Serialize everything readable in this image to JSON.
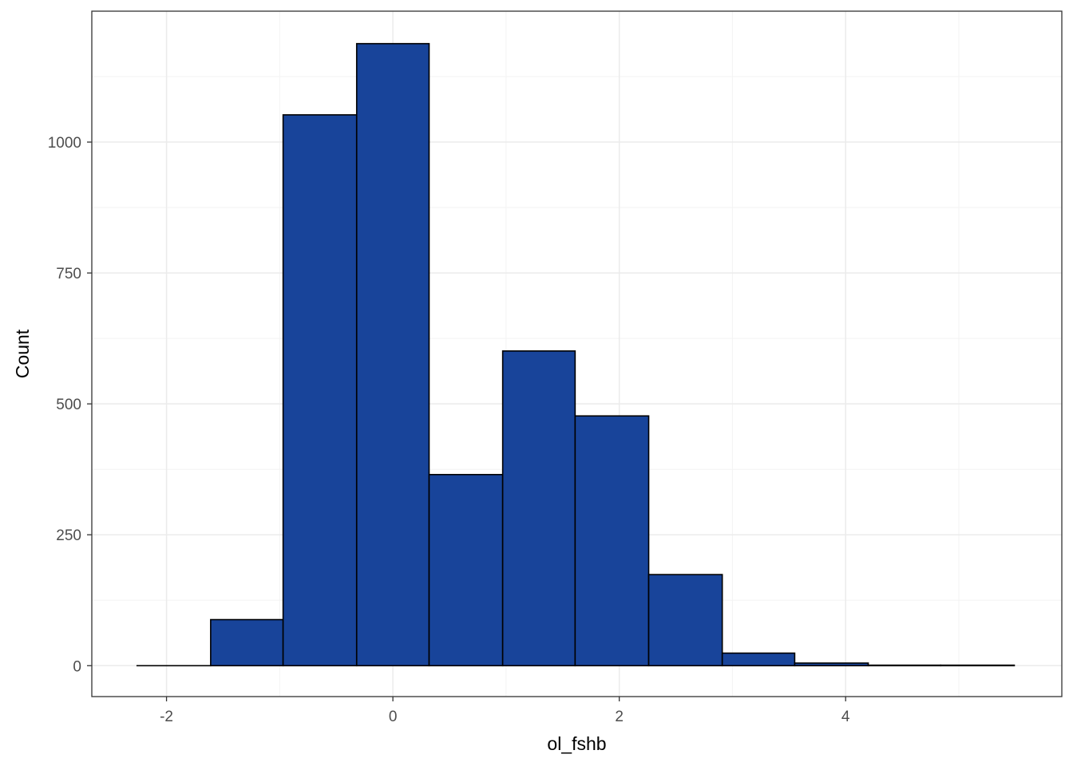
{
  "chart_data": {
    "type": "bar",
    "subtype": "histogram",
    "xlabel": "ol_fshb",
    "ylabel": "Count",
    "xlim": [
      -2.66,
      5.91
    ],
    "ylim": [
      -59,
      1250
    ],
    "x_ticks": [
      -2,
      0,
      2,
      4
    ],
    "x_tick_labels": [
      "-2",
      "0",
      "2",
      "4"
    ],
    "y_ticks": [
      0,
      250,
      500,
      750,
      1000
    ],
    "y_tick_labels": [
      "0",
      "250",
      "500",
      "750",
      "1000"
    ],
    "bins": [
      {
        "x0": -2.26,
        "x1": -1.61,
        "count": 0
      },
      {
        "x0": -1.61,
        "x1": -0.97,
        "count": 88
      },
      {
        "x0": -0.97,
        "x1": -0.32,
        "count": 1052
      },
      {
        "x0": -0.32,
        "x1": 0.32,
        "count": 1188
      },
      {
        "x0": 0.32,
        "x1": 0.97,
        "count": 365
      },
      {
        "x0": 0.97,
        "x1": 1.61,
        "count": 601
      },
      {
        "x0": 1.61,
        "x1": 2.26,
        "count": 477
      },
      {
        "x0": 2.26,
        "x1": 2.91,
        "count": 174
      },
      {
        "x0": 2.91,
        "x1": 3.55,
        "count": 24
      },
      {
        "x0": 3.55,
        "x1": 4.2,
        "count": 5
      },
      {
        "x0": 4.2,
        "x1": 4.84,
        "count": 1
      },
      {
        "x0": 4.84,
        "x1": 5.49,
        "count": 1
      }
    ],
    "grid": true,
    "legend": "none",
    "colors": {
      "bar_fill": "#18449a",
      "bar_stroke": "#000000",
      "grid_major": "#ebebeb",
      "grid_minor": "#f3f3f3",
      "panel_border": "#333333"
    }
  }
}
